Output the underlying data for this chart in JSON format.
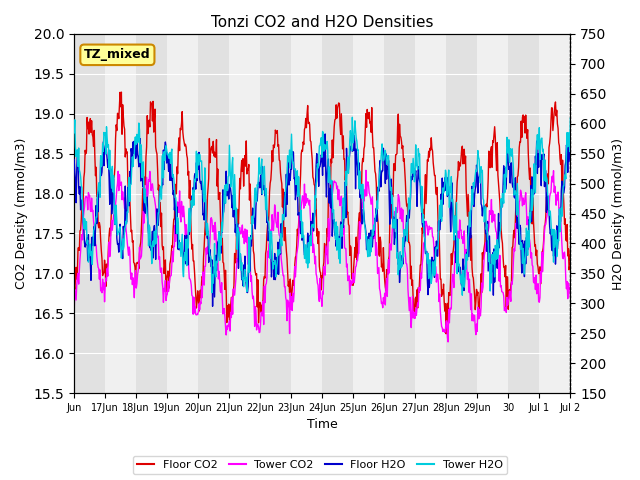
{
  "title": "Tonzi CO2 and H2O Densities",
  "xlabel": "Time",
  "ylabel_left": "CO2 Density (mmol/m3)",
  "ylabel_right": "H2O Density (mmol/m3)",
  "ylim_left": [
    15.5,
    20.0
  ],
  "ylim_right": [
    150,
    750
  ],
  "xtick_positions": [
    0,
    1,
    2,
    3,
    4,
    5,
    6,
    7,
    8,
    9,
    10,
    11,
    12,
    13,
    14,
    15,
    16
  ],
  "xtick_labels": [
    "Jun",
    "17Jun",
    "18Jun",
    "19Jun",
    "20Jun",
    "21Jun",
    "22Jun",
    "23Jun",
    "24Jun",
    "25Jun",
    "26Jun",
    "27Jun",
    "28Jun",
    "29Jun",
    "30",
    "Jul 1",
    "Jul 2"
  ],
  "n_days": 16,
  "label_box_text": "TZ_mixed",
  "colors": {
    "floor_co2": "#DD0000",
    "tower_co2": "#FF00FF",
    "floor_h2o": "#0000CC",
    "tower_h2o": "#00CCDD"
  },
  "seed": 42
}
